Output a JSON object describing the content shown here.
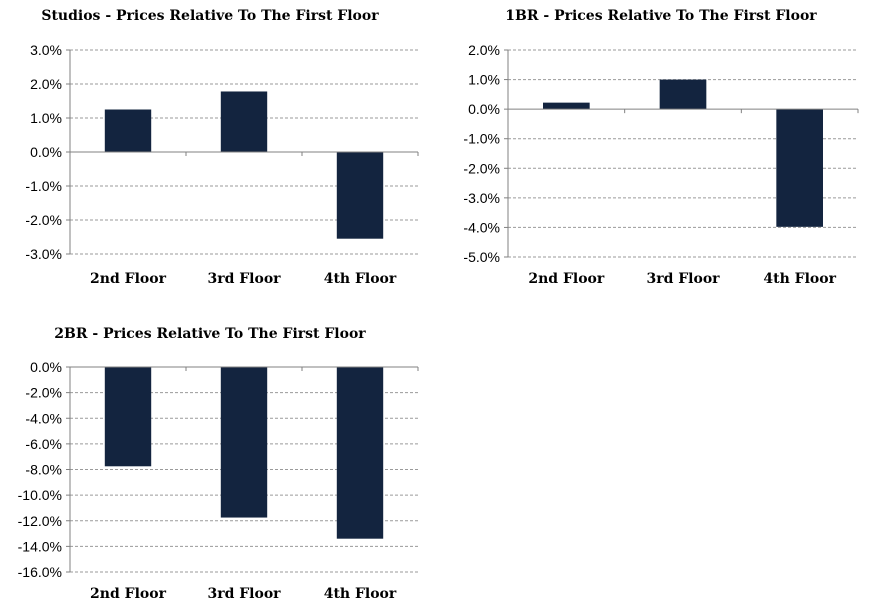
{
  "chart_data": [
    {
      "type": "bar",
      "title": "Studios - Prices Relative To The First Floor",
      "categories": [
        "2nd Floor",
        "3rd Floor",
        "4th Floor"
      ],
      "values": [
        1.25,
        1.78,
        -2.55
      ],
      "ylim": [
        -3,
        3
      ],
      "yticks": [
        3,
        2,
        1,
        0,
        -1,
        -2,
        -3
      ],
      "ytick_labels": [
        "3.0%",
        "2.0%",
        "1.0%",
        "0.0%",
        "-1.0%",
        "-2.0%",
        "-3.0%"
      ],
      "bar_color": "#13243f",
      "grid": true,
      "legend": "none"
    },
    {
      "type": "bar",
      "title": "1BR - Prices Relative To The First Floor",
      "categories": [
        "2nd Floor",
        "3rd Floor",
        "4th Floor"
      ],
      "values": [
        0.22,
        1.0,
        -3.98
      ],
      "ylim": [
        -5,
        2
      ],
      "yticks": [
        2,
        1,
        0,
        -1,
        -2,
        -3,
        -4,
        -5
      ],
      "ytick_labels": [
        "2.0%",
        "1.0%",
        "0.0%",
        "-1.0%",
        "-2.0%",
        "-3.0%",
        "-4.0%",
        "-5.0%"
      ],
      "bar_color": "#13243f",
      "grid": true,
      "legend": "none"
    },
    {
      "type": "bar",
      "title": "2BR - Prices Relative To The First Floor",
      "categories": [
        "2nd Floor",
        "3rd Floor",
        "4th Floor"
      ],
      "values": [
        -7.75,
        -11.75,
        -13.4
      ],
      "ylim": [
        -16,
        0
      ],
      "yticks": [
        0,
        -2,
        -4,
        -6,
        -8,
        -10,
        -12,
        -14,
        -16
      ],
      "ytick_labels": [
        "0.0%",
        "-2.0%",
        "-4.0%",
        "-6.0%",
        "-8.0%",
        "-10.0%",
        "-12.0%",
        "-14.0%",
        "-16.0%"
      ],
      "bar_color": "#13243f",
      "grid": true,
      "legend": "none"
    }
  ]
}
